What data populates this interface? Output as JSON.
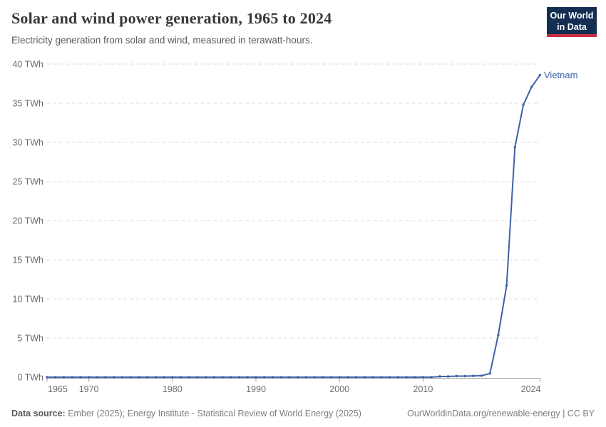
{
  "header": {
    "title": "Solar and wind power generation, 1965 to 2024",
    "subtitle": "Electricity generation from solar and wind, measured in terawatt-hours.",
    "logo_line1": "Our World",
    "logo_line2": "in Data"
  },
  "footer": {
    "source_label": "Data source:",
    "source_text": " Ember (2025); Energy Institute - Statistical Review of World Energy (2025)",
    "link_text": "OurWorldinData.org/renewable-energy | CC BY"
  },
  "colors": {
    "line": "#3d62a8",
    "series_label": "#3d62a8",
    "logo_background": "#142e52",
    "logo_stripe": "#cf2e41",
    "gridline": "#dcdcdc",
    "axis": "#a3a3a3",
    "tick_label": "#6b6b6b"
  },
  "chart_data": {
    "type": "line",
    "title": "Solar and wind power generation, 1965 to 2024",
    "subtitle": "Electricity generation from solar and wind, measured in terawatt-hours.",
    "unit": "TWh",
    "xlabel": "",
    "ylabel": "",
    "xlim": [
      1965,
      2024
    ],
    "ylim": [
      0,
      40
    ],
    "grid": "horizontal-dashed",
    "legend_position": "end-of-line",
    "x_ticks": [
      {
        "value": 1965,
        "label": "1965"
      },
      {
        "value": 1970,
        "label": "1970"
      },
      {
        "value": 1980,
        "label": "1980"
      },
      {
        "value": 1990,
        "label": "1990"
      },
      {
        "value": 2000,
        "label": "2000"
      },
      {
        "value": 2010,
        "label": "2010"
      },
      {
        "value": 2024,
        "label": "2024"
      }
    ],
    "y_ticks": [
      {
        "value": 0,
        "label": "0 TWh"
      },
      {
        "value": 5,
        "label": "5 TWh"
      },
      {
        "value": 10,
        "label": "10 TWh"
      },
      {
        "value": 15,
        "label": "15 TWh"
      },
      {
        "value": 20,
        "label": "20 TWh"
      },
      {
        "value": 25,
        "label": "25 TWh"
      },
      {
        "value": 30,
        "label": "30 TWh"
      },
      {
        "value": 35,
        "label": "35 TWh"
      },
      {
        "value": 40,
        "label": "40 TWh"
      }
    ],
    "series": [
      {
        "name": "Vietnam",
        "color": "#3d62a8",
        "marker": "dot",
        "years": [
          1965,
          1966,
          1967,
          1968,
          1969,
          1970,
          1971,
          1972,
          1973,
          1974,
          1975,
          1976,
          1977,
          1978,
          1979,
          1980,
          1981,
          1982,
          1983,
          1984,
          1985,
          1986,
          1987,
          1988,
          1989,
          1990,
          1991,
          1992,
          1993,
          1994,
          1995,
          1996,
          1997,
          1998,
          1999,
          2000,
          2001,
          2002,
          2003,
          2004,
          2005,
          2006,
          2007,
          2008,
          2009,
          2010,
          2011,
          2012,
          2013,
          2014,
          2015,
          2016,
          2017,
          2018,
          2019,
          2020,
          2021,
          2022,
          2023,
          2024
        ],
        "values": [
          0,
          0,
          0,
          0,
          0,
          0,
          0,
          0,
          0,
          0,
          0,
          0,
          0,
          0,
          0,
          0,
          0,
          0,
          0,
          0,
          0,
          0,
          0,
          0,
          0,
          0,
          0,
          0,
          0,
          0,
          0,
          0,
          0,
          0,
          0,
          0,
          0,
          0,
          0,
          0,
          0,
          0,
          0,
          0,
          0,
          0,
          0,
          0.09,
          0.09,
          0.14,
          0.14,
          0.16,
          0.19,
          0.47,
          5.4,
          11.7,
          29.4,
          34.8,
          37.1,
          38.6
        ]
      }
    ]
  }
}
